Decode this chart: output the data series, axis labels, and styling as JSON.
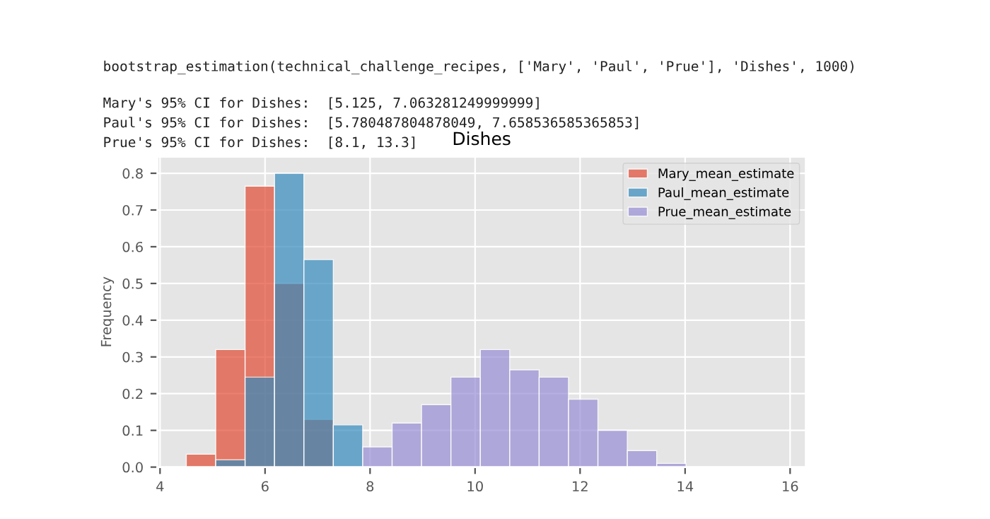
{
  "chart_data": {
    "type": "histogram",
    "title": "Dishes",
    "ylabel": "Frequency",
    "annotations": [
      "bootstrap_estimation(technical_challenge_recipes, ['Mary', 'Paul', 'Prue'], 'Dishes', 1000)",
      "Mary's 95% CI for Dishes:  [5.125, 7.063281249999999]",
      "Paul's 95% CI for Dishes:  [5.780487804878049, 7.658536585365853]",
      "Prue's 95% CI for Dishes:  [8.1, 13.3]"
    ],
    "bins": [
      4.5,
      5.06,
      5.62,
      6.18,
      6.74,
      7.3,
      7.86,
      8.42,
      8.98,
      9.54,
      10.1,
      10.66,
      11.22,
      11.78,
      12.34,
      12.9,
      13.46,
      14.02
    ],
    "series": [
      {
        "name": "Mary_mean_estimate",
        "color": "#e24a33",
        "values": [
          0.035,
          0.32,
          0.765,
          0.5,
          0.13,
          null,
          null,
          null,
          null,
          null,
          null,
          null,
          null,
          null,
          null,
          null,
          null
        ]
      },
      {
        "name": "Paul_mean_estimate",
        "color": "#348abd",
        "values": [
          null,
          0.02,
          0.245,
          0.8,
          0.565,
          0.115,
          null,
          null,
          null,
          null,
          null,
          null,
          null,
          null,
          null,
          null,
          null
        ]
      },
      {
        "name": "Prue_mean_estimate",
        "color": "#988ed5",
        "values": [
          null,
          null,
          null,
          null,
          null,
          null,
          0.055,
          0.12,
          0.17,
          0.245,
          0.32,
          0.265,
          0.245,
          0.185,
          0.1,
          0.045,
          0.01
        ]
      }
    ],
    "xlim": [
      3.95,
      16.3
    ],
    "ylim": [
      0,
      0.845
    ],
    "xticks": [
      4,
      6,
      8,
      10,
      12,
      14,
      16
    ],
    "yticks": [
      {
        "value": 0,
        "label": "0.0"
      },
      0.1,
      0.2,
      0.3,
      0.4,
      0.5,
      0.6,
      0.7,
      0.8
    ],
    "grid": true,
    "legend": "top right"
  }
}
